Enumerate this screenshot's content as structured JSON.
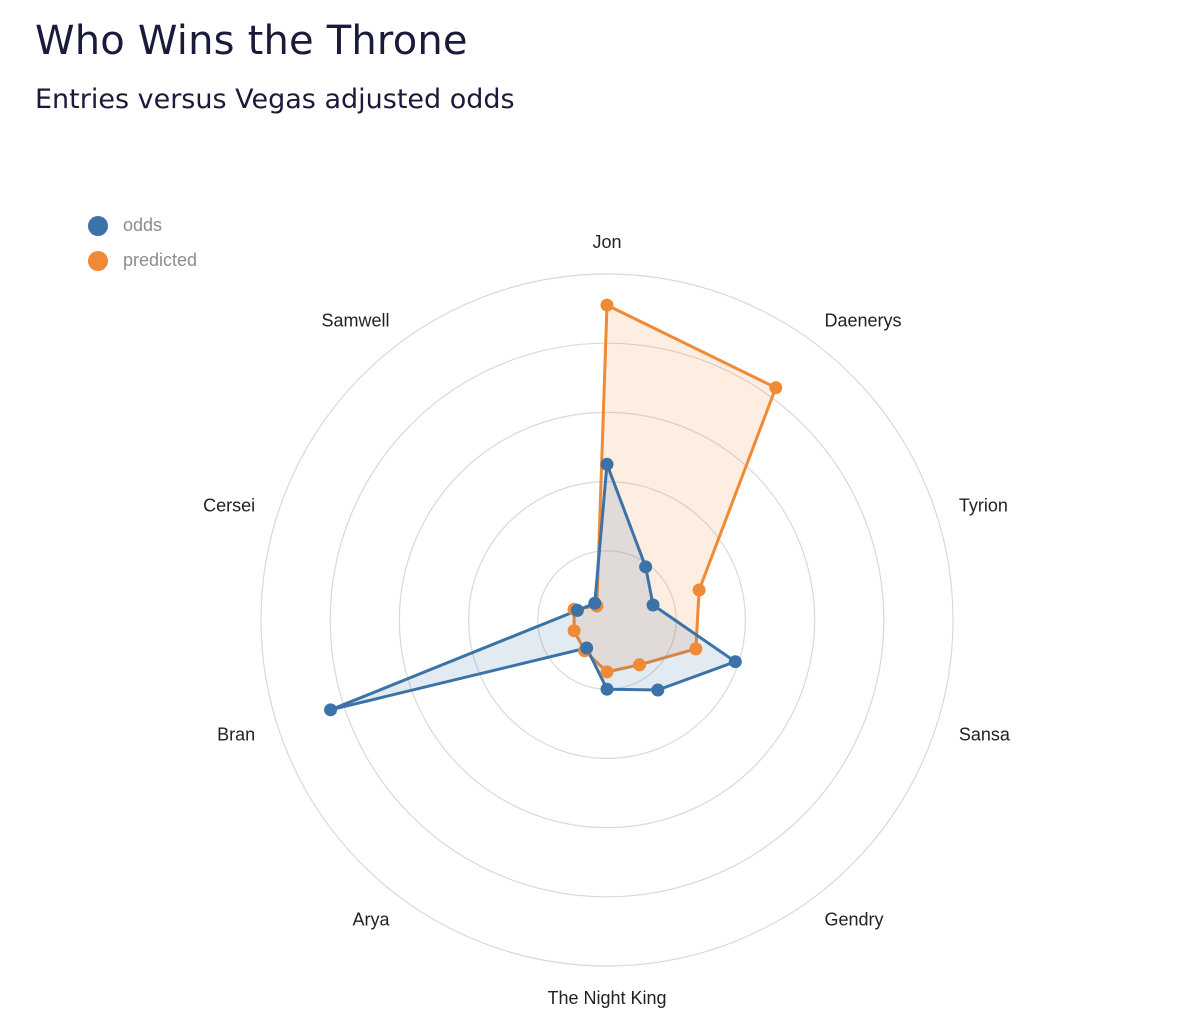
{
  "header": {
    "title": "Who Wins the Throne",
    "subtitle": "Entries versus Vegas adjusted odds"
  },
  "colors": {
    "odds": "#3b73a8",
    "predicted": "#ef8a36",
    "grid": "#d9d9d9",
    "legend_text": "#8c8c8c"
  },
  "legend": {
    "items": [
      {
        "label": "odds",
        "color": "#3b73a8"
      },
      {
        "label": "predicted",
        "color": "#ef8a36"
      }
    ]
  },
  "chart_data": {
    "type": "radar",
    "title": "Who Wins the Throne",
    "subtitle": "Entries versus Vegas adjusted odds",
    "categories": [
      "Jon",
      "Daenerys",
      "Tyrion",
      "Sansa",
      "Gendry",
      "The Night King",
      "Arya",
      "Bran",
      "Cersei",
      "Samwell"
    ],
    "rmax": 1.0,
    "grid_rings": 5,
    "grid": true,
    "legend_position": "top-left",
    "series": [
      {
        "name": "odds",
        "color": "#3b73a8",
        "values": [
          0.45,
          0.19,
          0.14,
          0.39,
          0.25,
          0.2,
          0.1,
          0.84,
          0.09,
          0.06
        ]
      },
      {
        "name": "predicted",
        "color": "#ef8a36",
        "values": [
          0.91,
          0.83,
          0.28,
          0.27,
          0.16,
          0.15,
          0.11,
          0.1,
          0.1,
          0.05
        ]
      }
    ]
  }
}
